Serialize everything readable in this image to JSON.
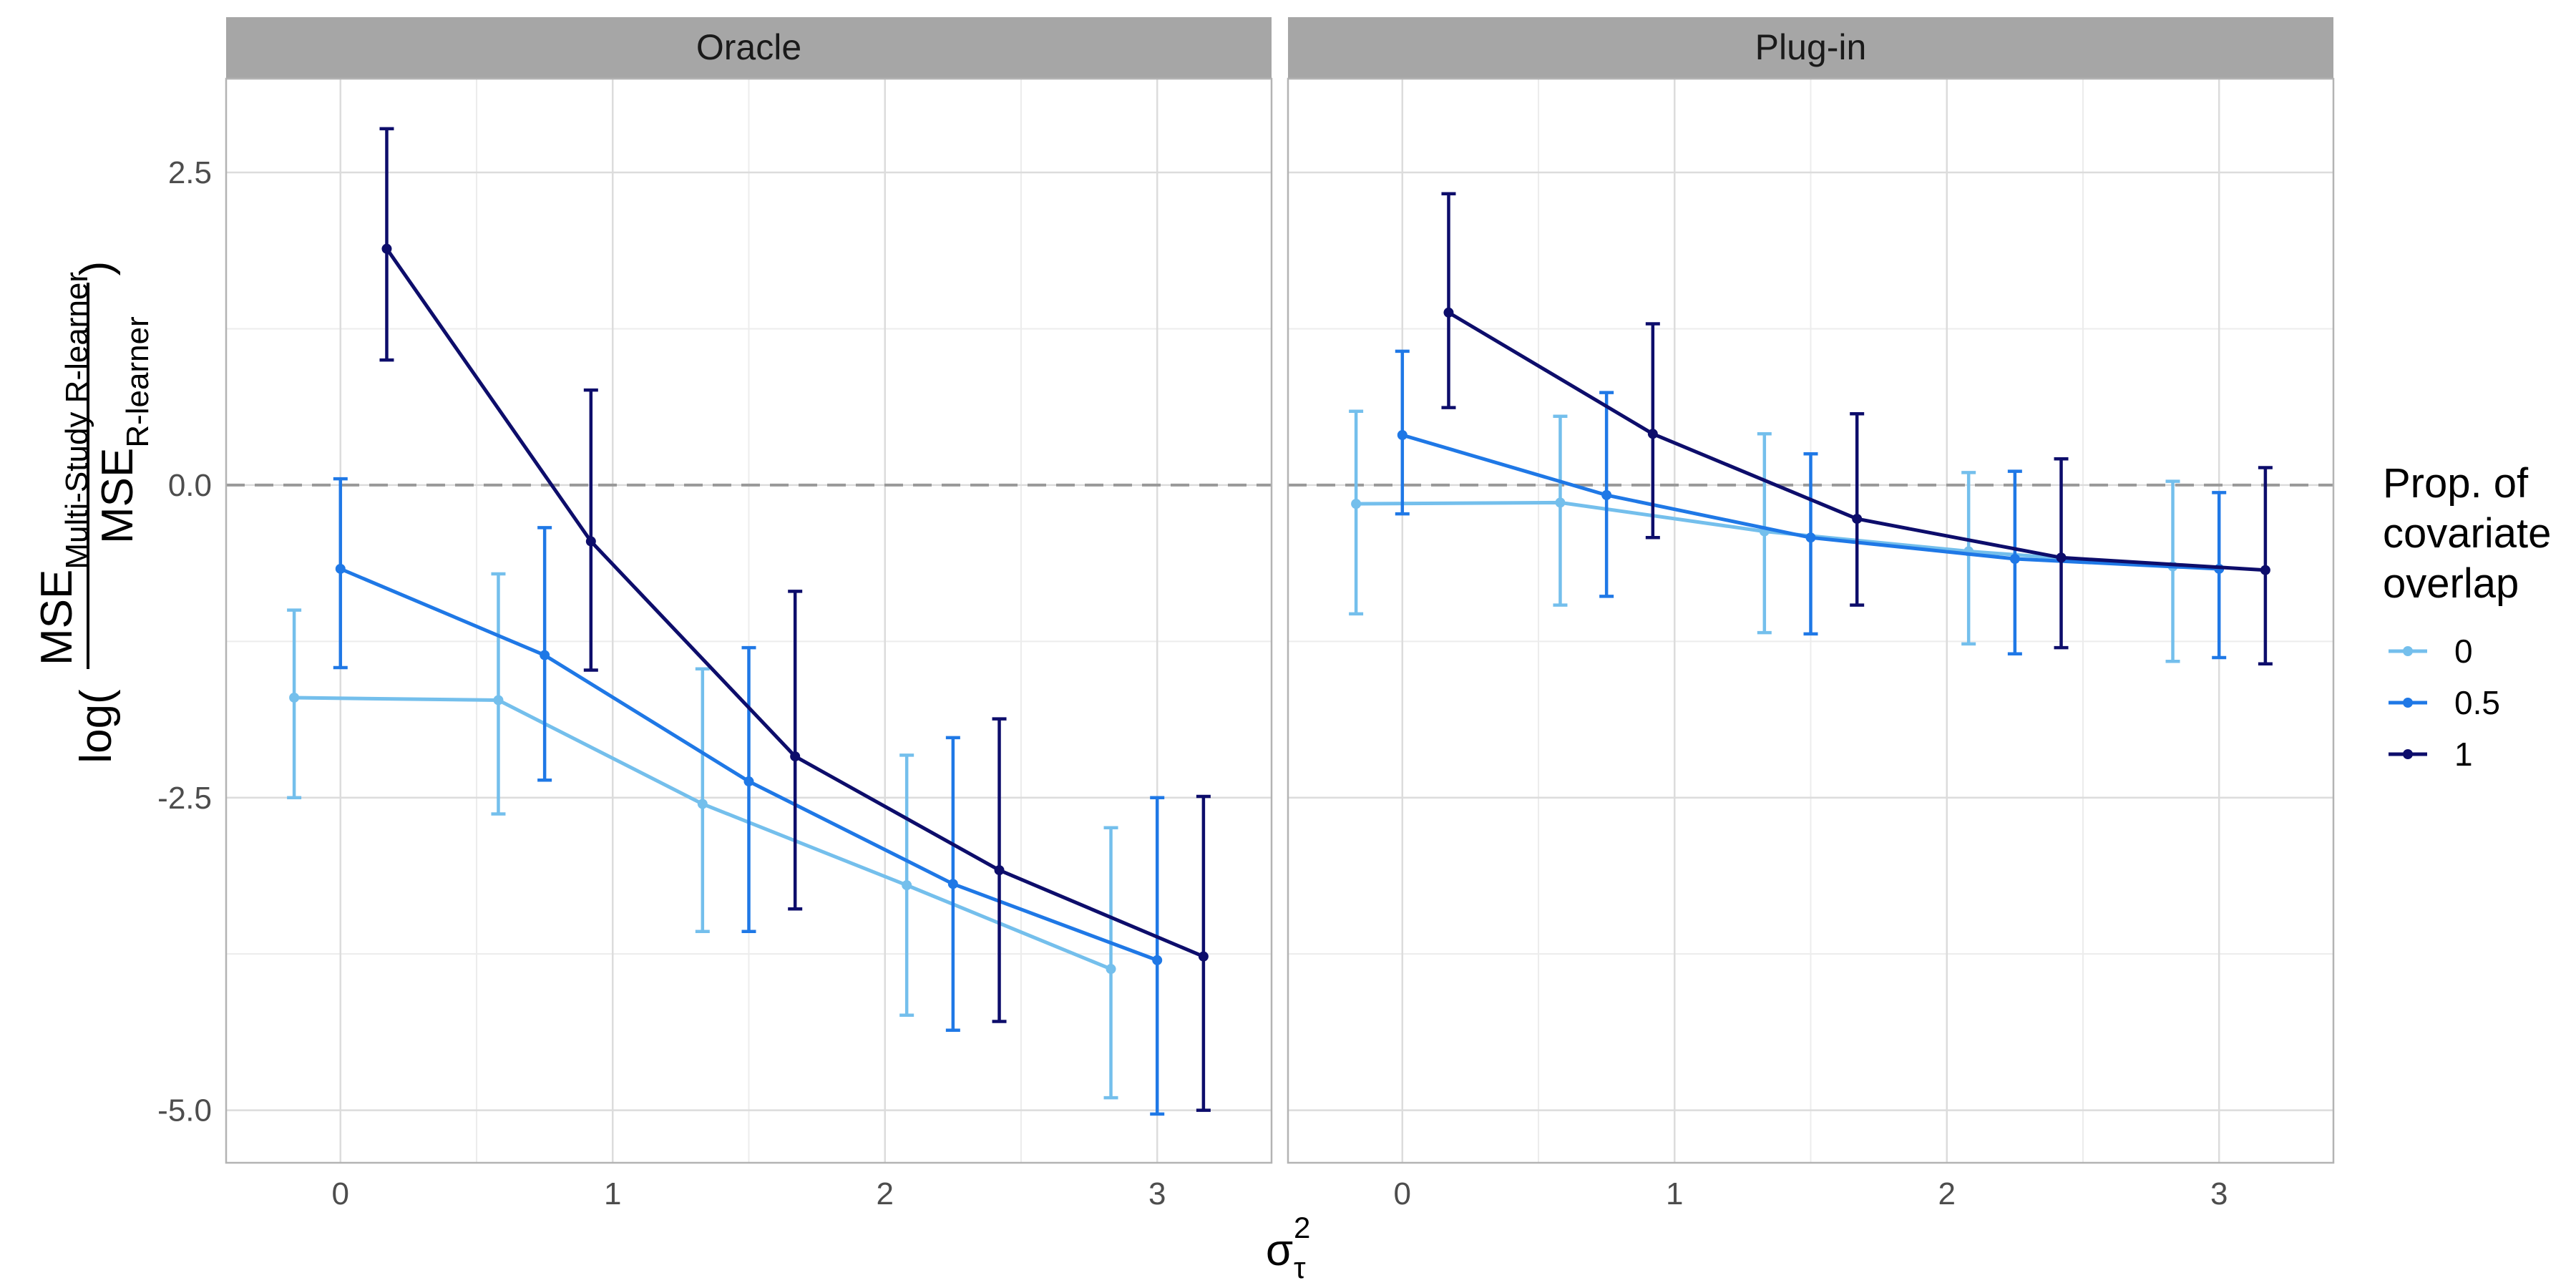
{
  "chart_data": {
    "type": "line",
    "facets": [
      "Oracle",
      "Plug-in"
    ],
    "x_ticks": [
      0,
      1,
      2,
      3
    ],
    "y_ticks": [
      2.5,
      0.0,
      -2.5,
      -5.0
    ],
    "y_tick_labels": [
      "2.5",
      "0.0",
      "-2.5",
      "-5.0"
    ],
    "xlim": [
      -0.42,
      3.42
    ],
    "ylim": [
      -5.42,
      3.25
    ],
    "x_values": [
      0,
      0.75,
      1.5,
      2.25,
      3
    ],
    "dodge_offsets": [
      -0.17,
      0,
      0.17
    ],
    "reference_line_y": 0,
    "legend": {
      "title_lines": [
        "Prop. of",
        "covariate",
        "overlap"
      ],
      "position": "right"
    },
    "xlabel": {
      "symbol": "σ",
      "superscript": "2",
      "subscript": "τ"
    },
    "ylabel": {
      "prefix": "log(",
      "suffix": ")",
      "numerator_main": "MSE",
      "numerator_sub": "Multi-Study R-learner",
      "denominator_main": "MSE",
      "denominator_sub": "R-learner"
    },
    "series": [
      {
        "name": "0",
        "color": "#74bfec",
        "panels": {
          "Oracle": {
            "y": [
              -1.7,
              -1.72,
              -2.55,
              -3.2,
              -3.87
            ],
            "lower": [
              -2.5,
              -2.63,
              -3.57,
              -4.24,
              -4.9
            ],
            "upper": [
              -1.0,
              -0.71,
              -1.47,
              -2.16,
              -2.74
            ]
          },
          "Plug-in": {
            "y": [
              -0.15,
              -0.14,
              -0.37,
              -0.53,
              -0.65
            ],
            "lower": [
              -1.03,
              -0.96,
              -1.18,
              -1.27,
              -1.41
            ],
            "upper": [
              0.59,
              0.55,
              0.41,
              0.1,
              0.03
            ]
          }
        }
      },
      {
        "name": "0.5",
        "color": "#1f78e6",
        "panels": {
          "Oracle": {
            "y": [
              -0.67,
              -1.36,
              -2.37,
              -3.19,
              -3.8
            ],
            "lower": [
              -1.46,
              -2.36,
              -3.57,
              -4.36,
              -5.03
            ],
            "upper": [
              0.05,
              -0.34,
              -1.3,
              -2.02,
              -2.5
            ]
          },
          "Plug-in": {
            "y": [
              0.4,
              -0.08,
              -0.42,
              -0.59,
              -0.67
            ],
            "lower": [
              -0.23,
              -0.89,
              -1.19,
              -1.35,
              -1.38
            ],
            "upper": [
              1.07,
              0.74,
              0.25,
              0.11,
              -0.06
            ]
          }
        }
      },
      {
        "name": "1",
        "color": "#0d0d6b",
        "panels": {
          "Oracle": {
            "y": [
              1.89,
              -0.45,
              -2.17,
              -3.08,
              -3.77
            ],
            "lower": [
              1.0,
              -1.48,
              -3.39,
              -4.29,
              -5.0
            ],
            "upper": [
              2.85,
              0.76,
              -0.85,
              -1.87,
              -2.49
            ]
          },
          "Plug-in": {
            "y": [
              1.38,
              0.41,
              -0.27,
              -0.58,
              -0.68
            ],
            "lower": [
              0.62,
              -0.42,
              -0.96,
              -1.3,
              -1.43
            ],
            "upper": [
              2.33,
              1.29,
              0.57,
              0.21,
              0.14
            ]
          }
        }
      }
    ]
  }
}
